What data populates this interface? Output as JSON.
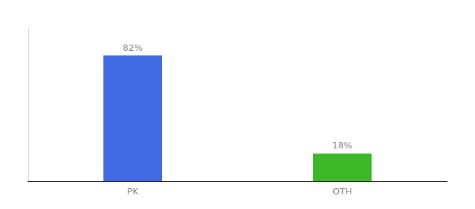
{
  "chart_data": {
    "type": "bar",
    "categories": [
      "PK",
      "OTH"
    ],
    "values": [
      82,
      18
    ],
    "value_labels": [
      "82%",
      "18%"
    ],
    "colors": [
      "#4169e1",
      "#3cb828"
    ],
    "ylim": [
      0,
      100
    ],
    "grid": false,
    "data_labels": true,
    "tick_labels": "x"
  }
}
